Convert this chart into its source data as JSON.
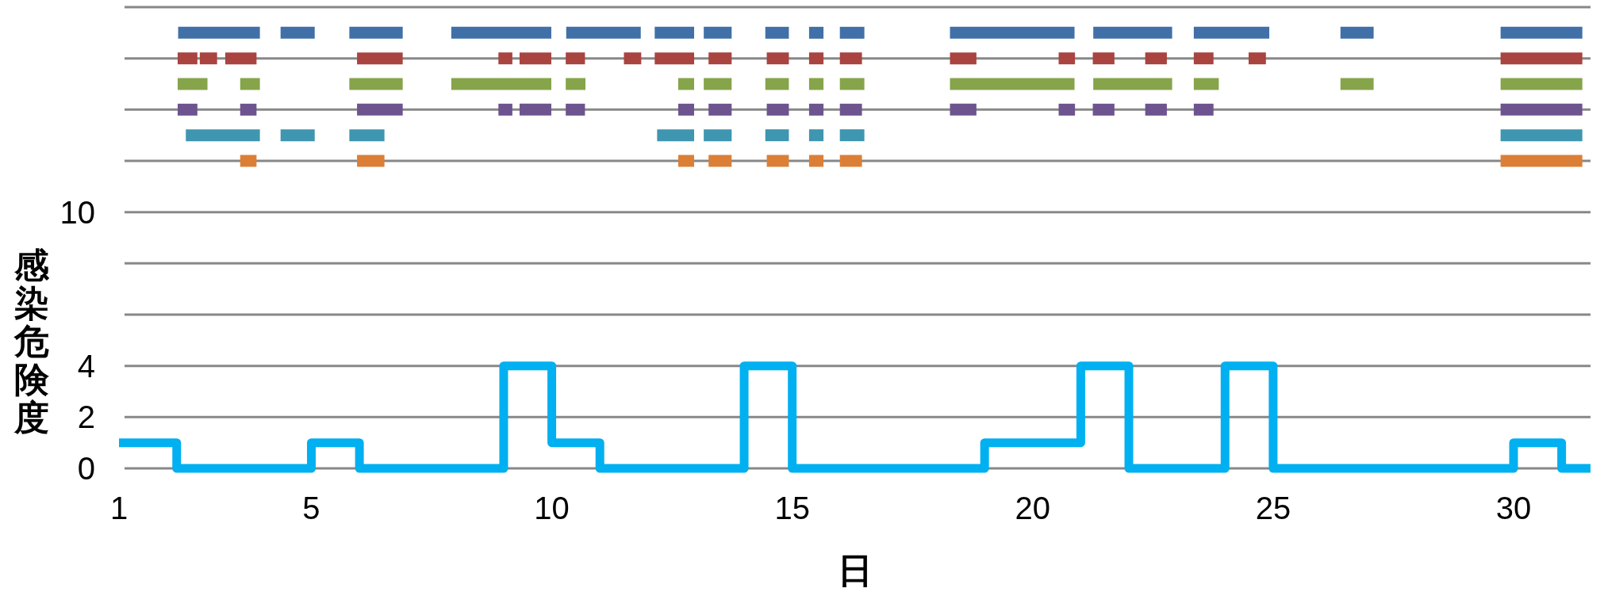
{
  "chart_data": {
    "type": "line",
    "xlabel": "日",
    "ylabel": "感染危険度",
    "xlim": [
      1,
      31.6
    ],
    "xticks": [
      1,
      5,
      10,
      15,
      20,
      25,
      30
    ],
    "ylim": [
      0,
      18
    ],
    "yticks": [
      0,
      2,
      4,
      {
        "value": 6,
        "label": null
      },
      {
        "value": 8,
        "label": null
      },
      10,
      {
        "value": 12,
        "label": null
      },
      {
        "value": 14,
        "label": null
      },
      {
        "value": 16,
        "label": null
      },
      {
        "value": 18,
        "label": null
      }
    ],
    "grid": "y",
    "series": [
      {
        "type": "step",
        "color": "#00b0f0",
        "x": [
          1,
          2.2,
          5,
          6,
          9,
          10,
          11,
          14,
          15,
          19,
          21,
          22,
          24,
          25,
          30,
          31,
          31.6
        ],
        "values": [
          1,
          0,
          1,
          0,
          4,
          1,
          0,
          4,
          0,
          1,
          4,
          0,
          4,
          0,
          1,
          0,
          0
        ]
      },
      {
        "color": "#4170a8",
        "x": [
          2.23,
          3.93
        ],
        "values": [
          17,
          17
        ]
      },
      {
        "color": "#4170a8",
        "x": [
          4.36,
          5.07
        ],
        "values": [
          17,
          17
        ]
      },
      {
        "color": "#4170a8",
        "x": [
          5.79,
          6.9
        ],
        "values": [
          17,
          17
        ]
      },
      {
        "color": "#4170a8",
        "x": [
          7.91,
          9.99
        ],
        "values": [
          17,
          17
        ]
      },
      {
        "color": "#4170a8",
        "x": [
          10.3,
          11.85
        ],
        "values": [
          17,
          17
        ]
      },
      {
        "color": "#4170a8",
        "x": [
          12.14,
          12.96
        ],
        "values": [
          17,
          17
        ]
      },
      {
        "color": "#4170a8",
        "x": [
          13.16,
          13.74
        ],
        "values": [
          17,
          17
        ]
      },
      {
        "color": "#4170a8",
        "x": [
          14.44,
          14.93
        ],
        "values": [
          17,
          17
        ]
      },
      {
        "color": "#4170a8",
        "x": [
          15.35,
          15.65
        ],
        "values": [
          17,
          17
        ]
      },
      {
        "color": "#4170a8",
        "x": [
          15.99,
          16.5
        ],
        "values": [
          17,
          17
        ]
      },
      {
        "color": "#4170a8",
        "x": [
          18.28,
          20.87
        ],
        "values": [
          17,
          17
        ]
      },
      {
        "color": "#4170a8",
        "x": [
          21.26,
          22.9
        ],
        "values": [
          17,
          17
        ]
      },
      {
        "color": "#4170a8",
        "x": [
          23.35,
          24.92
        ],
        "values": [
          17,
          17
        ]
      },
      {
        "color": "#4170a8",
        "x": [
          26.4,
          27.09
        ],
        "values": [
          17,
          17
        ]
      },
      {
        "color": "#4170a8",
        "x": [
          29.73,
          31.43
        ],
        "values": [
          17,
          17
        ]
      },
      {
        "color": "#a94441",
        "x": [
          2.22,
          2.63
        ],
        "values": [
          16,
          16
        ]
      },
      {
        "color": "#a94441",
        "x": [
          2.68,
          3.04
        ],
        "values": [
          16,
          16
        ]
      },
      {
        "color": "#a94441",
        "x": [
          3.21,
          3.86
        ],
        "values": [
          16,
          16
        ]
      },
      {
        "color": "#a94441",
        "x": [
          5.95,
          6.9
        ],
        "values": [
          16,
          16
        ]
      },
      {
        "color": "#a94441",
        "x": [
          8.89,
          9.18
        ],
        "values": [
          16,
          16
        ]
      },
      {
        "color": "#a94441",
        "x": [
          9.33,
          9.99
        ],
        "values": [
          16,
          16
        ]
      },
      {
        "color": "#a94441",
        "x": [
          10.29,
          10.69
        ],
        "values": [
          16,
          16
        ]
      },
      {
        "color": "#a94441",
        "x": [
          11.5,
          11.86
        ],
        "values": [
          16,
          16
        ]
      },
      {
        "color": "#a94441",
        "x": [
          12.14,
          12.96
        ],
        "values": [
          16,
          16
        ]
      },
      {
        "color": "#a94441",
        "x": [
          13.26,
          13.74
        ],
        "values": [
          16,
          16
        ]
      },
      {
        "color": "#a94441",
        "x": [
          14.47,
          14.93
        ],
        "values": [
          16,
          16
        ]
      },
      {
        "color": "#a94441",
        "x": [
          15.35,
          15.65
        ],
        "values": [
          16,
          16
        ]
      },
      {
        "color": "#a94441",
        "x": [
          15.99,
          16.45
        ],
        "values": [
          16,
          16
        ]
      },
      {
        "color": "#a94441",
        "x": [
          18.28,
          18.83
        ],
        "values": [
          16,
          16
        ]
      },
      {
        "color": "#a94441",
        "x": [
          20.54,
          20.88
        ],
        "values": [
          16,
          16
        ]
      },
      {
        "color": "#a94441",
        "x": [
          21.25,
          21.7
        ],
        "values": [
          16,
          16
        ]
      },
      {
        "color": "#a94441",
        "x": [
          22.34,
          22.79
        ],
        "values": [
          16,
          16
        ]
      },
      {
        "color": "#a94441",
        "x": [
          23.35,
          23.76
        ],
        "values": [
          16,
          16
        ]
      },
      {
        "color": "#a94441",
        "x": [
          24.49,
          24.85
        ],
        "values": [
          16,
          16
        ]
      },
      {
        "color": "#a94441",
        "x": [
          29.73,
          31.43
        ],
        "values": [
          16,
          16
        ]
      },
      {
        "color": "#86a44a",
        "x": [
          2.22,
          2.84
        ],
        "values": [
          15,
          15
        ]
      },
      {
        "color": "#86a44a",
        "x": [
          3.52,
          3.93
        ],
        "values": [
          15,
          15
        ]
      },
      {
        "color": "#86a44a",
        "x": [
          5.79,
          6.9
        ],
        "values": [
          15,
          15
        ]
      },
      {
        "color": "#86a44a",
        "x": [
          7.91,
          9.99
        ],
        "values": [
          15,
          15
        ]
      },
      {
        "color": "#86a44a",
        "x": [
          10.29,
          10.7
        ],
        "values": [
          15,
          15
        ]
      },
      {
        "color": "#86a44a",
        "x": [
          12.63,
          12.96
        ],
        "values": [
          15,
          15
        ]
      },
      {
        "color": "#86a44a",
        "x": [
          13.16,
          13.74
        ],
        "values": [
          15,
          15
        ]
      },
      {
        "color": "#86a44a",
        "x": [
          14.44,
          14.93
        ],
        "values": [
          15,
          15
        ]
      },
      {
        "color": "#86a44a",
        "x": [
          15.35,
          15.65
        ],
        "values": [
          15,
          15
        ]
      },
      {
        "color": "#86a44a",
        "x": [
          15.99,
          16.5
        ],
        "values": [
          15,
          15
        ]
      },
      {
        "color": "#86a44a",
        "x": [
          18.28,
          20.87
        ],
        "values": [
          15,
          15
        ]
      },
      {
        "color": "#86a44a",
        "x": [
          21.26,
          22.9
        ],
        "values": [
          15,
          15
        ]
      },
      {
        "color": "#86a44a",
        "x": [
          23.35,
          23.87
        ],
        "values": [
          15,
          15
        ]
      },
      {
        "color": "#86a44a",
        "x": [
          26.4,
          27.09
        ],
        "values": [
          15,
          15
        ]
      },
      {
        "color": "#86a44a",
        "x": [
          29.73,
          31.43
        ],
        "values": [
          15,
          15
        ]
      },
      {
        "color": "#6d548f",
        "x": [
          2.22,
          2.63
        ],
        "values": [
          14,
          14
        ]
      },
      {
        "color": "#6d548f",
        "x": [
          3.52,
          3.86
        ],
        "values": [
          14,
          14
        ]
      },
      {
        "color": "#6d548f",
        "x": [
          5.95,
          6.9
        ],
        "values": [
          14,
          14
        ]
      },
      {
        "color": "#6d548f",
        "x": [
          8.89,
          9.18
        ],
        "values": [
          14,
          14
        ]
      },
      {
        "color": "#6d548f",
        "x": [
          9.33,
          9.99
        ],
        "values": [
          14,
          14
        ]
      },
      {
        "color": "#6d548f",
        "x": [
          10.29,
          10.69
        ],
        "values": [
          14,
          14
        ]
      },
      {
        "color": "#6d548f",
        "x": [
          12.63,
          12.96
        ],
        "values": [
          14,
          14
        ]
      },
      {
        "color": "#6d548f",
        "x": [
          13.26,
          13.74
        ],
        "values": [
          14,
          14
        ]
      },
      {
        "color": "#6d548f",
        "x": [
          14.47,
          14.93
        ],
        "values": [
          14,
          14
        ]
      },
      {
        "color": "#6d548f",
        "x": [
          15.35,
          15.65
        ],
        "values": [
          14,
          14
        ]
      },
      {
        "color": "#6d548f",
        "x": [
          15.99,
          16.45
        ],
        "values": [
          14,
          14
        ]
      },
      {
        "color": "#6d548f",
        "x": [
          18.28,
          18.83
        ],
        "values": [
          14,
          14
        ]
      },
      {
        "color": "#6d548f",
        "x": [
          20.54,
          20.88
        ],
        "values": [
          14,
          14
        ]
      },
      {
        "color": "#6d548f",
        "x": [
          21.25,
          21.7
        ],
        "values": [
          14,
          14
        ]
      },
      {
        "color": "#6d548f",
        "x": [
          22.34,
          22.79
        ],
        "values": [
          14,
          14
        ]
      },
      {
        "color": "#6d548f",
        "x": [
          23.35,
          23.76
        ],
        "values": [
          14,
          14
        ]
      },
      {
        "color": "#6d548f",
        "x": [
          29.73,
          31.43
        ],
        "values": [
          14,
          14
        ]
      },
      {
        "color": "#3e96b0",
        "x": [
          2.39,
          3.93
        ],
        "values": [
          13,
          13
        ]
      },
      {
        "color": "#3e96b0",
        "x": [
          4.36,
          5.07
        ],
        "values": [
          13,
          13
        ]
      },
      {
        "color": "#3e96b0",
        "x": [
          5.79,
          6.52
        ],
        "values": [
          13,
          13
        ]
      },
      {
        "color": "#3e96b0",
        "x": [
          12.19,
          12.96
        ],
        "values": [
          13,
          13
        ]
      },
      {
        "color": "#3e96b0",
        "x": [
          13.16,
          13.74
        ],
        "values": [
          13,
          13
        ]
      },
      {
        "color": "#3e96b0",
        "x": [
          14.44,
          14.93
        ],
        "values": [
          13,
          13
        ]
      },
      {
        "color": "#3e96b0",
        "x": [
          15.35,
          15.65
        ],
        "values": [
          13,
          13
        ]
      },
      {
        "color": "#3e96b0",
        "x": [
          15.99,
          16.5
        ],
        "values": [
          13,
          13
        ]
      },
      {
        "color": "#3e96b0",
        "x": [
          29.73,
          31.43
        ],
        "values": [
          13,
          13
        ]
      },
      {
        "color": "#dc7f36",
        "x": [
          3.52,
          3.86
        ],
        "values": [
          12,
          12
        ]
      },
      {
        "color": "#dc7f36",
        "x": [
          5.95,
          6.52
        ],
        "values": [
          12,
          12
        ]
      },
      {
        "color": "#dc7f36",
        "x": [
          12.63,
          12.96
        ],
        "values": [
          12,
          12
        ]
      },
      {
        "color": "#dc7f36",
        "x": [
          13.26,
          13.74
        ],
        "values": [
          12,
          12
        ]
      },
      {
        "color": "#dc7f36",
        "x": [
          14.47,
          14.93
        ],
        "values": [
          12,
          12
        ]
      },
      {
        "color": "#dc7f36",
        "x": [
          15.35,
          15.65
        ],
        "values": [
          12,
          12
        ]
      },
      {
        "color": "#dc7f36",
        "x": [
          15.99,
          16.45
        ],
        "values": [
          12,
          12
        ]
      },
      {
        "color": "#dc7f36",
        "x": [
          29.73,
          31.43
        ],
        "values": [
          12,
          12
        ]
      }
    ]
  }
}
